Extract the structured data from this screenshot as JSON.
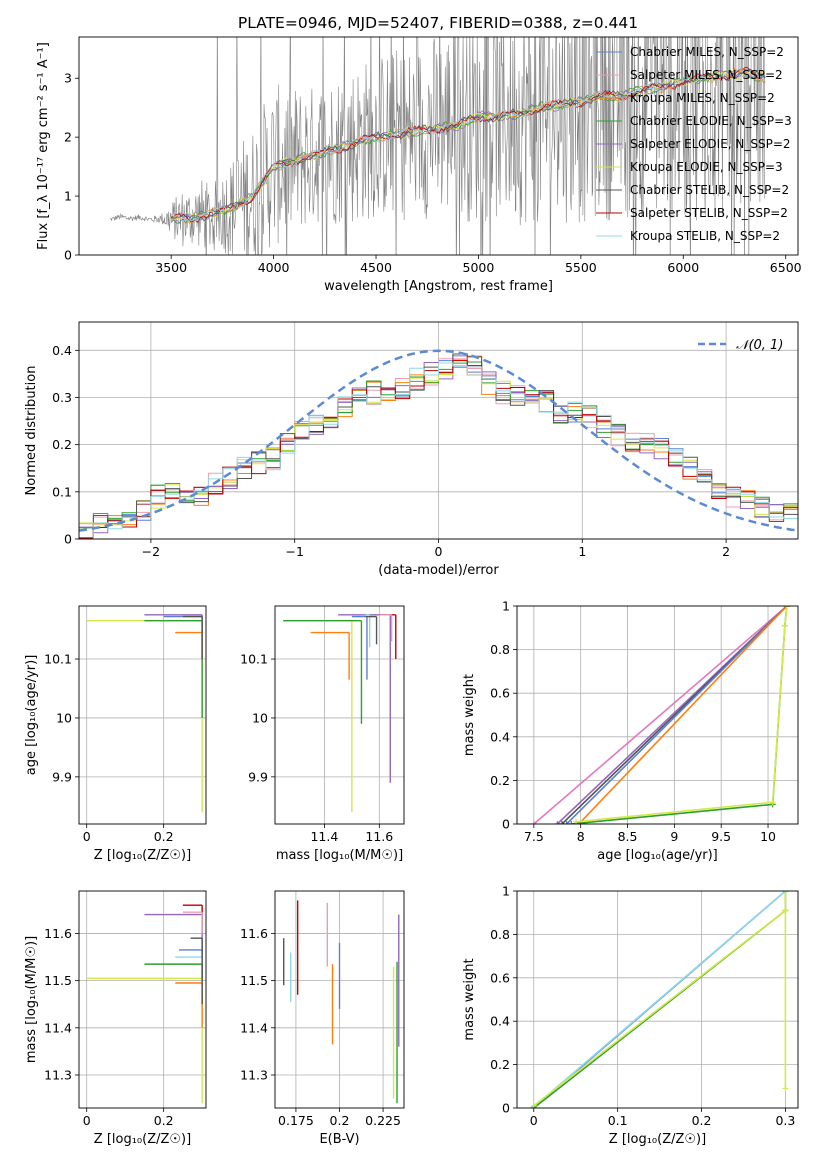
{
  "figure_title": "PLATE=0946, MJD=52407, FIBERID=0388, z=0.441",
  "chart_data": [
    {
      "id": "spectrum",
      "type": "line",
      "xlabel": "wavelength [Angstrom, rest frame]",
      "ylabel": "Flux [f_λ 10⁻¹⁷ erg cm⁻² s⁻¹ A⁻¹]",
      "xlim": [
        3050,
        6560
      ],
      "ylim": [
        0,
        3.7
      ],
      "xticks": [
        3500,
        4000,
        4500,
        5000,
        5500,
        6000,
        6500
      ],
      "yticks": [
        0,
        1,
        2,
        3
      ],
      "grid": false,
      "legend_placement": "top-right",
      "data_series": {
        "name": "",
        "color": "#808080",
        "x": [
          3200,
          3250,
          3300,
          3350,
          3400,
          3450,
          3500,
          3550,
          3600,
          3650,
          3700,
          3750,
          3800,
          3850,
          3900,
          3950,
          4000,
          4100,
          4200,
          4300,
          4400,
          4500,
          4600,
          4700,
          4800,
          4900,
          5000,
          5100,
          5200,
          5300,
          5400,
          5500,
          5600,
          5700,
          5800,
          5900,
          6000,
          6100,
          6200,
          6300,
          6400
        ],
        "y": [
          0.6,
          0.65,
          0.62,
          0.64,
          0.6,
          0.62,
          0.6,
          0.62,
          0.64,
          0.7,
          0.6,
          0.75,
          0.8,
          0.9,
          1.0,
          1.3,
          1.5,
          1.6,
          1.7,
          1.8,
          1.9,
          2.0,
          2.05,
          2.1,
          2.2,
          2.3,
          2.3,
          2.35,
          2.4,
          2.5,
          2.55,
          2.6,
          2.7,
          2.75,
          2.8,
          2.85,
          2.95,
          3.0,
          3.05,
          3.1,
          3.0
        ],
        "noise_amplitude": [
          0.04,
          0.05,
          0.05,
          0.05,
          0.05,
          0.08,
          0.3,
          0.5,
          0.5,
          0.6,
          0.6,
          0.7,
          0.9,
          1.1,
          1.2,
          1.3,
          1.4,
          1.3,
          1.2,
          1.3,
          1.4,
          1.4,
          1.5,
          1.5,
          1.6,
          1.7,
          1.8,
          1.8,
          1.9,
          2.0,
          2.0,
          2.1,
          2.1,
          2.2,
          2.2,
          2.3,
          2.4,
          2.4,
          2.5,
          2.5,
          2.5
        ]
      },
      "model_series": [
        {
          "name": "Chabrier MILES, N_SSP=2",
          "color": "#5b7fd6"
        },
        {
          "name": "Salpeter MILES, N_SSP=2",
          "color": "#e8a0b0"
        },
        {
          "name": "Kroupa MILES, N_SSP=2",
          "color": "#ff7f0e"
        },
        {
          "name": "Chabrier ELODIE, N_SSP=3",
          "color": "#2ca02c"
        },
        {
          "name": "Salpeter ELODIE, N_SSP=2",
          "color": "#9467bd"
        },
        {
          "name": "Kroupa ELODIE, N_SSP=3",
          "color": "#d4e84a"
        },
        {
          "name": "Chabrier STELIB, N_SSP=2",
          "color": "#555555"
        },
        {
          "name": "Salpeter STELIB, N_SSP=2",
          "color": "#c00000"
        },
        {
          "name": "Kroupa STELIB, N_SSP=2",
          "color": "#8fd8e8"
        }
      ],
      "model_x": [
        3200,
        3300,
        3400,
        3500,
        3600,
        3700,
        3800,
        3900,
        4000,
        4100,
        4200,
        4300,
        4400,
        4500,
        4600,
        4700,
        4800,
        4900,
        5000,
        5100,
        5200,
        5300,
        5400,
        5500,
        5600,
        5700,
        5800,
        5900,
        6000,
        6100,
        6200,
        6300,
        6400
      ],
      "model_y": [
        0.6,
        0.62,
        0.63,
        0.62,
        0.63,
        0.7,
        0.8,
        1.0,
        1.5,
        1.6,
        1.7,
        1.8,
        1.9,
        2.0,
        2.05,
        2.1,
        2.15,
        2.2,
        2.35,
        2.35,
        2.4,
        2.5,
        2.55,
        2.6,
        2.7,
        2.7,
        2.8,
        2.85,
        2.95,
        3.0,
        3.05,
        3.1,
        3.0
      ]
    },
    {
      "id": "residuals",
      "type": "line",
      "xlabel": "(data-model)/error",
      "ylabel": "Normed distribution",
      "xlim": [
        -2.5,
        2.5
      ],
      "ylim": [
        0,
        0.46
      ],
      "xticks": [
        -2,
        -1,
        0,
        1,
        2
      ],
      "yticks": [
        0.0,
        0.1,
        0.2,
        0.3,
        0.4
      ],
      "grid": true,
      "legend_placement": "top-right",
      "gaussian": {
        "label": "𝒩(0, 1)",
        "color": "#5b8ad6",
        "mean": 0,
        "sigma": 1
      },
      "bin_edges": [
        -2.5,
        -2.4,
        -2.3,
        -2.2,
        -2.1,
        -2.0,
        -1.9,
        -1.8,
        -1.7,
        -1.6,
        -1.5,
        -1.4,
        -1.3,
        -1.2,
        -1.1,
        -1.0,
        -0.9,
        -0.8,
        -0.7,
        -0.6,
        -0.5,
        -0.4,
        -0.3,
        -0.2,
        -0.1,
        0.0,
        0.1,
        0.2,
        0.3,
        0.4,
        0.5,
        0.6,
        0.7,
        0.8,
        0.9,
        1.0,
        1.1,
        1.2,
        1.3,
        1.4,
        1.5,
        1.6,
        1.7,
        1.8,
        1.9,
        2.0,
        2.1,
        2.2,
        2.3,
        2.4,
        2.5
      ],
      "hist_values": [
        0.02,
        0.03,
        0.04,
        0.04,
        0.06,
        0.09,
        0.11,
        0.1,
        0.09,
        0.12,
        0.13,
        0.15,
        0.16,
        0.17,
        0.2,
        0.23,
        0.24,
        0.26,
        0.28,
        0.3,
        0.31,
        0.3,
        0.32,
        0.34,
        0.35,
        0.36,
        0.38,
        0.37,
        0.33,
        0.31,
        0.3,
        0.3,
        0.29,
        0.27,
        0.27,
        0.26,
        0.24,
        0.22,
        0.21,
        0.2,
        0.19,
        0.17,
        0.15,
        0.13,
        0.1,
        0.09,
        0.08,
        0.07,
        0.06,
        0.06
      ]
    },
    {
      "id": "age_vs_Z",
      "type": "scatter",
      "xlabel": "Z [log₁₀(Z/Z☉)]",
      "ylabel": "age  [log₁₀(age/yr)]",
      "xlim": [
        -0.02,
        0.31
      ],
      "ylim": [
        9.82,
        10.19
      ],
      "xticks": [
        0.0,
        0.2
      ],
      "yticks": [
        9.9,
        10.0,
        10.1
      ],
      "grid": true,
      "segments": [
        {
          "x": 0.3,
          "y": 10.175,
          "x_lo": 0.15,
          "y_lo": 10.1,
          "color": "#9467bd"
        },
        {
          "x": 0.3,
          "y": 10.172,
          "x_lo": 0.2,
          "y_lo": 10.09,
          "color": "#5b7fd6"
        },
        {
          "x": 0.3,
          "y": 10.165,
          "x_lo": 0.0,
          "y_lo": 9.84,
          "color": "#d4e84a"
        },
        {
          "x": 0.3,
          "y": 10.165,
          "x_lo": 0.15,
          "y_lo": 10.0,
          "color": "#2ca02c"
        },
        {
          "x": 0.3,
          "y": 10.145,
          "x_lo": 0.23,
          "y_lo": 10.1,
          "color": "#ff7f0e"
        },
        {
          "x": 0.3,
          "y": 10.172,
          "x_lo": 0.25,
          "y_lo": 10.1,
          "color": "#555555"
        }
      ]
    },
    {
      "id": "age_vs_mass",
      "type": "scatter",
      "xlabel": "mass [log₁₀(M/M☉)]",
      "ylabel": "",
      "xlim": [
        11.22,
        11.69
      ],
      "ylim": [
        9.82,
        10.19
      ],
      "xticks": [
        11.4,
        11.6
      ],
      "yticks": [
        9.9,
        10.0,
        10.1
      ],
      "grid": true,
      "segments": [
        {
          "x": 11.5,
          "y": 10.165,
          "x_lo": 11.25,
          "y_lo": 9.84,
          "color": "#d4e84a"
        },
        {
          "x": 11.535,
          "y": 10.165,
          "x_lo": 11.25,
          "y_lo": 9.99,
          "color": "#2ca02c"
        },
        {
          "x": 11.64,
          "y": 10.175,
          "x_lo": 11.45,
          "y_lo": 9.89,
          "color": "#9467bd"
        },
        {
          "x": 11.49,
          "y": 10.145,
          "x_lo": 11.35,
          "y_lo": 10.065,
          "color": "#ff7f0e"
        },
        {
          "x": 11.555,
          "y": 10.172,
          "x_lo": 11.5,
          "y_lo": 10.065,
          "color": "#5b7fd6"
        },
        {
          "x": 11.565,
          "y": 10.175,
          "x_lo": 11.55,
          "y_lo": 10.12,
          "color": "#8fd8e8"
        },
        {
          "x": 11.59,
          "y": 10.172,
          "x_lo": 11.55,
          "y_lo": 10.125,
          "color": "#555555"
        },
        {
          "x": 11.66,
          "y": 10.175,
          "x_lo": 11.6,
          "y_lo": 10.1,
          "color": "#c00000"
        },
        {
          "x": 11.645,
          "y": 10.175,
          "x_lo": 11.6,
          "y_lo": 10.13,
          "color": "#e8a0b0"
        }
      ]
    },
    {
      "id": "massweight_vs_age",
      "type": "line",
      "xlabel": "age  [log₁₀(age/yr)]",
      "ylabel": "mass weight",
      "xlim": [
        7.32,
        10.32
      ],
      "ylim": [
        0,
        1.0
      ],
      "xticks": [
        7.5,
        8.0,
        8.5,
        9.0,
        9.5,
        10.0
      ],
      "yticks": [
        0.0,
        0.2,
        0.4,
        0.6,
        0.8,
        1.0
      ],
      "grid": true,
      "series": [
        {
          "color": "#e377c2",
          "x": [
            7.5,
            10.2
          ],
          "y": [
            0.0,
            1.0
          ]
        },
        {
          "color": "#9467bd",
          "x": [
            7.75,
            10.2
          ],
          "y": [
            0.0,
            1.0
          ]
        },
        {
          "color": "#555555",
          "x": [
            7.8,
            10.2
          ],
          "y": [
            0.0,
            1.0
          ]
        },
        {
          "color": "#5b7fd6",
          "x": [
            7.85,
            10.2
          ],
          "y": [
            0.0,
            1.0
          ]
        },
        {
          "color": "#ff7f0e",
          "x": [
            7.98,
            10.2
          ],
          "y": [
            0.0,
            1.0
          ]
        },
        {
          "color": "#2ca02c",
          "x": [
            7.9,
            10.05,
            10.18,
            10.2
          ],
          "y": [
            0.0,
            0.09,
            0.91,
            1.0
          ]
        },
        {
          "color": "#d4e84a",
          "x": [
            7.95,
            10.05,
            10.18,
            10.2
          ],
          "y": [
            0.01,
            0.1,
            0.91,
            1.0
          ]
        }
      ]
    },
    {
      "id": "mass_vs_Z",
      "type": "scatter",
      "xlabel": "Z [log₁₀(Z/Z☉)]",
      "ylabel": "mass [log₁₀(M/M☉)]",
      "xlim": [
        -0.02,
        0.31
      ],
      "ylim": [
        11.23,
        11.69
      ],
      "xticks": [
        0.0,
        0.2
      ],
      "yticks": [
        11.3,
        11.4,
        11.5,
        11.6
      ],
      "grid": true,
      "segments": [
        {
          "x": 0.3,
          "y": 11.66,
          "x_lo": 0.25,
          "y_lo": 11.6,
          "color": "#c00000"
        },
        {
          "x": 0.3,
          "y": 11.64,
          "x_lo": 0.15,
          "y_lo": 11.55,
          "color": "#9467bd"
        },
        {
          "x": 0.3,
          "y": 11.645,
          "x_lo": 0.25,
          "y_lo": 11.6,
          "color": "#e8a0b0"
        },
        {
          "x": 0.3,
          "y": 11.565,
          "x_lo": 0.24,
          "y_lo": 11.5,
          "color": "#5b7fd6"
        },
        {
          "x": 0.3,
          "y": 11.55,
          "x_lo": 0.23,
          "y_lo": 11.5,
          "color": "#8fd8e8"
        },
        {
          "x": 0.3,
          "y": 11.535,
          "x_lo": 0.15,
          "y_lo": 11.5,
          "color": "#2ca02c"
        },
        {
          "x": 0.3,
          "y": 11.505,
          "x_lo": 0.0,
          "y_lo": 11.24,
          "color": "#d4e84a"
        },
        {
          "x": 0.3,
          "y": 11.495,
          "x_lo": 0.23,
          "y_lo": 11.4,
          "color": "#ff7f0e"
        },
        {
          "x": 0.3,
          "y": 11.59,
          "x_lo": 0.27,
          "y_lo": 11.45,
          "color": "#555555"
        }
      ]
    },
    {
      "id": "mass_vs_EBV",
      "type": "scatter",
      "xlabel": "E(B-V)",
      "ylabel": "",
      "xlim": [
        0.163,
        0.237
      ],
      "ylim": [
        11.23,
        11.69
      ],
      "xticks": [
        0.175,
        0.2,
        0.225
      ],
      "yticks": [
        11.3,
        11.4,
        11.5,
        11.6
      ],
      "grid": true,
      "segments": [
        {
          "x": 0.168,
          "y_hi": 11.59,
          "y_lo": 11.49,
          "color": "#555555"
        },
        {
          "x": 0.172,
          "y_hi": 11.56,
          "y_lo": 11.455,
          "color": "#8fd8e8"
        },
        {
          "x": 0.176,
          "y_hi": 11.67,
          "y_lo": 11.47,
          "color": "#c00000"
        },
        {
          "x": 0.193,
          "y_hi": 11.665,
          "y_lo": 11.53,
          "color": "#e8a0b0"
        },
        {
          "x": 0.196,
          "y_hi": 11.535,
          "y_lo": 11.365,
          "color": "#ff7f0e"
        },
        {
          "x": 0.2,
          "y_hi": 11.58,
          "y_lo": 11.44,
          "color": "#5b7fd6"
        },
        {
          "x": 0.231,
          "y_hi": 11.53,
          "y_lo": 11.25,
          "color": "#d4e84a"
        },
        {
          "x": 0.233,
          "y_hi": 11.54,
          "y_lo": 11.24,
          "color": "#2ca02c"
        },
        {
          "x": 0.234,
          "y_hi": 11.64,
          "y_lo": 11.36,
          "color": "#9467bd"
        }
      ]
    },
    {
      "id": "massweight_vs_Z",
      "type": "line",
      "xlabel": "Z [log₁₀(Z/Z☉)]",
      "ylabel": "mass weight",
      "xlim": [
        -0.02,
        0.315
      ],
      "ylim": [
        0,
        1.0
      ],
      "xticks": [
        0.0,
        0.1,
        0.2,
        0.3
      ],
      "yticks": [
        0.0,
        0.2,
        0.4,
        0.6,
        0.8,
        1.0
      ],
      "grid": true,
      "series": [
        {
          "color": "#5b7fd6",
          "x": [
            0.0,
            0.3
          ],
          "y": [
            0.0,
            1.0
          ]
        },
        {
          "color": "#8fd8e8",
          "x": [
            0.0,
            0.3
          ],
          "y": [
            0.005,
            1.0
          ]
        },
        {
          "color": "#2ca02c",
          "x": [
            0.0,
            0.3,
            0.3
          ],
          "y": [
            0.0,
            0.91,
            1.0
          ]
        },
        {
          "color": "#d4e84a",
          "x": [
            0.0,
            0.3,
            0.3,
            0.3
          ],
          "y": [
            0.01,
            0.91,
            0.09,
            1.0
          ]
        }
      ]
    }
  ]
}
